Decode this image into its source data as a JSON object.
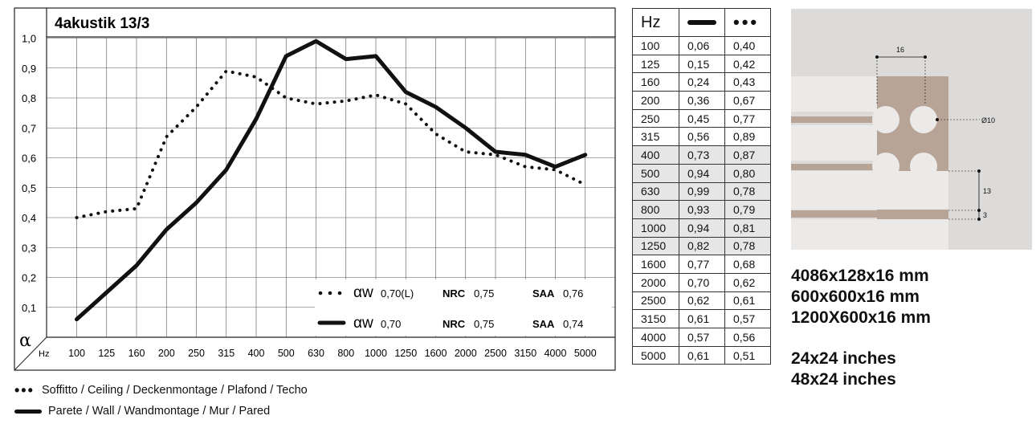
{
  "chart_data": {
    "type": "line",
    "title": "4akustik 13/3",
    "ylabel": "α",
    "xlabel": "Hz",
    "ylim": [
      0,
      1.0
    ],
    "yticks": [
      "0,1",
      "0,2",
      "0,3",
      "0,4",
      "0,5",
      "0,6",
      "0,7",
      "0,8",
      "0,9",
      "1,0"
    ],
    "categories": [
      "100",
      "125",
      "160",
      "200",
      "250",
      "315",
      "400",
      "500",
      "630",
      "800",
      "1000",
      "1250",
      "1600",
      "2000",
      "2500",
      "3150",
      "4000",
      "5000"
    ],
    "series": [
      {
        "name": "Soffitto / Ceiling / Deckenmontage / Plafond / Techo",
        "style": "dotted",
        "values": [
          0.4,
          0.42,
          0.43,
          0.67,
          0.77,
          0.89,
          0.87,
          0.8,
          0.78,
          0.79,
          0.81,
          0.78,
          0.68,
          0.62,
          0.61,
          0.57,
          0.56,
          0.51
        ]
      },
      {
        "name": "Parete / Wall / Wandmontage / Mur / Pared",
        "style": "solid",
        "values": [
          0.06,
          0.15,
          0.24,
          0.36,
          0.45,
          0.56,
          0.73,
          0.94,
          0.99,
          0.93,
          0.94,
          0.82,
          0.77,
          0.7,
          0.62,
          0.61,
          0.57,
          0.61
        ]
      }
    ],
    "grid": true,
    "inner_legend": [
      {
        "style": "dotted",
        "aw_label": "αw",
        "aw_value": "0,70(L)",
        "nrc_label": "NRC",
        "nrc_value": "0,75",
        "saa_label": "SAA",
        "saa_value": "0,76"
      },
      {
        "style": "solid",
        "aw_label": "αw",
        "aw_value": "0,70",
        "nrc_label": "NRC",
        "nrc_value": "0,75",
        "saa_label": "SAA",
        "saa_value": "0,74"
      }
    ]
  },
  "table": {
    "header": "Hz",
    "rows": [
      {
        "hz": "100",
        "wall": "0,06",
        "ceiling": "0,40",
        "shaded": false
      },
      {
        "hz": "125",
        "wall": "0,15",
        "ceiling": "0,42",
        "shaded": false
      },
      {
        "hz": "160",
        "wall": "0,24",
        "ceiling": "0,43",
        "shaded": false
      },
      {
        "hz": "200",
        "wall": "0,36",
        "ceiling": "0,67",
        "shaded": false
      },
      {
        "hz": "250",
        "wall": "0,45",
        "ceiling": "0,77",
        "shaded": false
      },
      {
        "hz": "315",
        "wall": "0,56",
        "ceiling": "0,89",
        "shaded": false
      },
      {
        "hz": "400",
        "wall": "0,73",
        "ceiling": "0,87",
        "shaded": true
      },
      {
        "hz": "500",
        "wall": "0,94",
        "ceiling": "0,80",
        "shaded": true
      },
      {
        "hz": "630",
        "wall": "0,99",
        "ceiling": "0,78",
        "shaded": true
      },
      {
        "hz": "800",
        "wall": "0,93",
        "ceiling": "0,79",
        "shaded": true
      },
      {
        "hz": "1000",
        "wall": "0,94",
        "ceiling": "0,81",
        "shaded": true
      },
      {
        "hz": "1250",
        "wall": "0,82",
        "ceiling": "0,78",
        "shaded": true
      },
      {
        "hz": "1600",
        "wall": "0,77",
        "ceiling": "0,68",
        "shaded": false
      },
      {
        "hz": "2000",
        "wall": "0,70",
        "ceiling": "0,62",
        "shaded": false
      },
      {
        "hz": "2500",
        "wall": "0,62",
        "ceiling": "0,61",
        "shaded": false
      },
      {
        "hz": "3150",
        "wall": "0,61",
        "ceiling": "0,57",
        "shaded": false
      },
      {
        "hz": "4000",
        "wall": "0,57",
        "ceiling": "0,56",
        "shaded": false
      },
      {
        "hz": "5000",
        "wall": "0,61",
        "ceiling": "0,51",
        "shaded": false
      }
    ]
  },
  "panel_drawing": {
    "dim_pitch": "16",
    "dim_hole": "Ø10",
    "dim_slat": "13",
    "dim_gap": "3",
    "colors": {
      "background": "#dcdbda",
      "slat": "#ebeae9",
      "felt": "#b7a497"
    }
  },
  "dimensions_mm": [
    "4086x128x16 mm",
    "600x600x16 mm",
    "1200X600x16 mm"
  ],
  "dimensions_in": [
    "24x24 inches",
    "48x24 inches"
  ],
  "legend": {
    "ceiling": "Soffitto / Ceiling / Deckenmontage / Plafond / Techo",
    "wall": "Parete / Wall / Wandmontage / Mur / Pared"
  }
}
